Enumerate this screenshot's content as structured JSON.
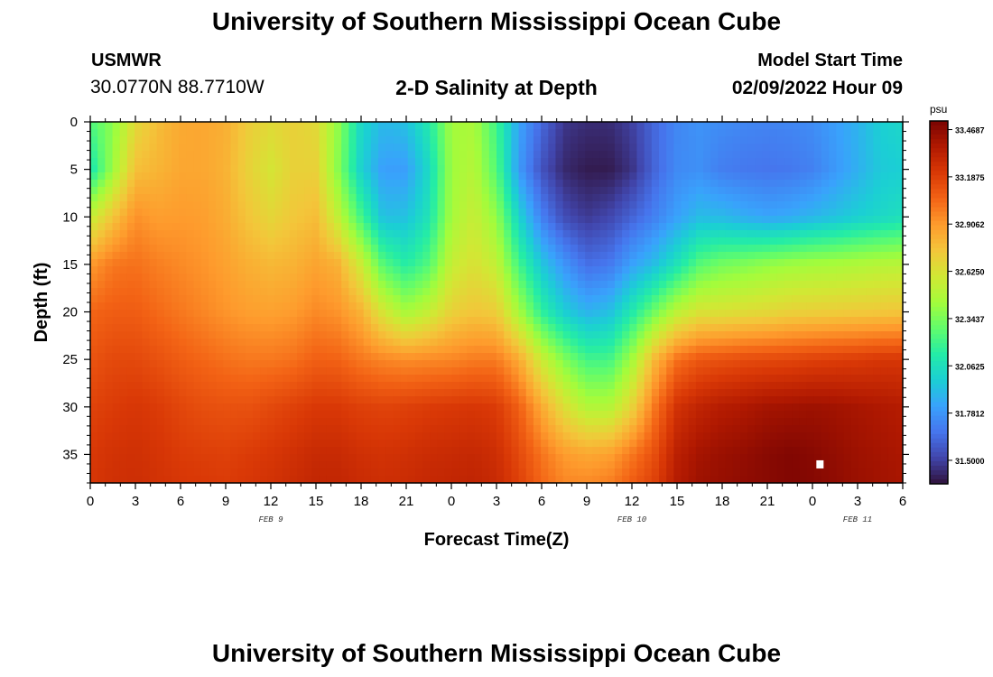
{
  "page": {
    "title_top": "University of Southern Mississippi Ocean Cube",
    "title_bottom": "University of Southern Mississippi Ocean Cube",
    "station_id": "USMWR",
    "station_coords": "30.0770N  88.7710W",
    "subtitle": "2-D Salinity at Depth",
    "model_start_label": "Model Start Time",
    "model_start_value": "02/09/2022 Hour 09"
  },
  "chart_data": {
    "type": "heatmap",
    "title": "2-D Salinity at Depth",
    "xlabel": "Forecast Time(Z)",
    "ylabel": "Depth (ft)",
    "x_hours_range": [
      0,
      54
    ],
    "x_ticks": [
      "0",
      "3",
      "6",
      "9",
      "12",
      "15",
      "18",
      "21",
      "0",
      "3",
      "6",
      "9",
      "12",
      "15",
      "18",
      "21",
      "0",
      "3",
      "6"
    ],
    "date_labels": [
      {
        "text": "FEB 9",
        "hour": 12
      },
      {
        "text": "FEB 10",
        "hour": 36
      },
      {
        "text": "FEB 11",
        "hour": 51
      }
    ],
    "ylim": [
      0,
      38
    ],
    "y_ticks": [
      "0",
      "5",
      "10",
      "15",
      "20",
      "25",
      "30",
      "35"
    ],
    "colorbar": {
      "unit": "psu",
      "labels": [
        "33.4687",
        "33.1875",
        "32.9062",
        "32.6250",
        "32.3437",
        "32.0625",
        "31.7812",
        "31.5000"
      ],
      "range": [
        31.36,
        33.52
      ],
      "colors": [
        "#30123b",
        "#4145ab",
        "#4675ed",
        "#39a2fc",
        "#1bcfd4",
        "#24eca6",
        "#61fc6c",
        "#a4fc3b",
        "#d1e834",
        "#f3c63a",
        "#fe9b2d",
        "#f36315",
        "#d93806",
        "#b11901",
        "#7a0402"
      ]
    },
    "salinity_grid": {
      "depth_ft": [
        0,
        5,
        10,
        15,
        20,
        25,
        30,
        35,
        38
      ],
      "hour": [
        0,
        1.5,
        3,
        4.5,
        6,
        7.5,
        9,
        10.5,
        12,
        13.5,
        15,
        16.5,
        18,
        19.5,
        21,
        22.5,
        24,
        25.5,
        27,
        28.5,
        30,
        31.5,
        33,
        34.5,
        36,
        37.5,
        39,
        40.5,
        42,
        43.5,
        45,
        46.5,
        48,
        49.5,
        51,
        52.5,
        54
      ],
      "values_psu": [
        [
          32.24,
          32.38,
          32.66,
          32.78,
          32.85,
          32.86,
          32.83,
          32.72,
          32.66,
          32.7,
          32.66,
          32.39,
          32.02,
          31.9,
          31.93,
          32.11,
          32.44,
          32.46,
          32.2,
          31.83,
          31.63,
          31.47,
          31.44,
          31.44,
          31.5,
          31.63,
          31.73,
          31.77,
          31.75,
          31.73,
          31.72,
          31.73,
          31.75,
          31.81,
          31.88,
          31.98,
          32.02
        ],
        [
          32.08,
          32.43,
          32.77,
          32.81,
          32.86,
          32.86,
          32.82,
          32.7,
          32.61,
          32.7,
          32.7,
          32.37,
          31.99,
          31.81,
          31.81,
          32.03,
          32.43,
          32.5,
          32.25,
          31.8,
          31.56,
          31.43,
          31.39,
          31.39,
          31.46,
          31.62,
          31.74,
          31.76,
          31.7,
          31.68,
          31.67,
          31.68,
          31.71,
          31.79,
          31.87,
          31.96,
          31.98
        ],
        [
          32.55,
          32.75,
          32.93,
          32.89,
          32.9,
          32.89,
          32.84,
          32.75,
          32.68,
          32.74,
          32.78,
          32.53,
          32.21,
          31.92,
          31.93,
          32.08,
          32.45,
          32.56,
          32.4,
          32.0,
          31.71,
          31.54,
          31.48,
          31.52,
          31.61,
          31.71,
          31.82,
          31.91,
          31.9,
          31.86,
          31.83,
          31.85,
          31.89,
          31.93,
          31.98,
          32.02,
          32.06
        ],
        [
          32.9,
          33.0,
          33.02,
          32.98,
          32.95,
          32.92,
          32.88,
          32.83,
          32.8,
          32.82,
          32.87,
          32.82,
          32.57,
          32.25,
          32.13,
          32.25,
          32.55,
          32.63,
          32.54,
          32.21,
          31.95,
          31.78,
          31.65,
          31.68,
          31.82,
          31.92,
          32.08,
          32.26,
          32.33,
          32.36,
          32.4,
          32.43,
          32.45,
          32.46,
          32.48,
          32.5,
          32.51
        ],
        [
          33.05,
          33.08,
          33.08,
          33.04,
          33.0,
          32.96,
          32.92,
          32.89,
          32.88,
          32.9,
          32.95,
          32.92,
          32.82,
          32.6,
          32.45,
          32.55,
          32.7,
          32.75,
          32.72,
          32.45,
          32.16,
          31.98,
          31.88,
          31.92,
          32.11,
          32.32,
          32.52,
          32.62,
          32.63,
          32.65,
          32.67,
          32.7,
          32.71,
          32.72,
          32.73,
          32.74,
          32.75
        ],
        [
          33.11,
          33.15,
          33.15,
          33.12,
          33.08,
          33.05,
          33.02,
          33.0,
          33.0,
          33.02,
          33.07,
          33.06,
          33.0,
          32.96,
          32.94,
          32.95,
          32.96,
          32.99,
          32.99,
          32.85,
          32.57,
          32.36,
          32.21,
          32.21,
          32.44,
          32.8,
          33.02,
          33.1,
          33.12,
          33.14,
          33.15,
          33.16,
          33.18,
          33.19,
          33.2,
          33.22,
          33.22
        ],
        [
          33.17,
          33.2,
          33.22,
          33.2,
          33.16,
          33.13,
          33.12,
          33.12,
          33.15,
          33.18,
          33.21,
          33.21,
          33.18,
          33.17,
          33.18,
          33.2,
          33.21,
          33.22,
          33.2,
          33.07,
          32.85,
          32.64,
          32.49,
          32.49,
          32.69,
          33.0,
          33.24,
          33.31,
          33.35,
          33.37,
          33.4,
          33.41,
          33.42,
          33.41,
          33.39,
          33.37,
          33.35
        ],
        [
          33.21,
          33.24,
          33.25,
          33.23,
          33.2,
          33.19,
          33.18,
          33.2,
          33.22,
          33.25,
          33.28,
          33.28,
          33.25,
          33.24,
          33.25,
          33.27,
          33.28,
          33.29,
          33.26,
          33.15,
          33.01,
          32.9,
          32.86,
          32.88,
          33.0,
          33.13,
          33.33,
          33.4,
          33.43,
          33.45,
          33.48,
          33.5,
          33.48,
          33.45,
          33.42,
          33.4,
          33.38
        ],
        [
          33.22,
          33.25,
          33.26,
          33.24,
          33.22,
          33.21,
          33.2,
          33.22,
          33.24,
          33.27,
          33.3,
          33.3,
          33.27,
          33.26,
          33.27,
          33.29,
          33.3,
          33.31,
          33.28,
          33.18,
          33.05,
          32.96,
          32.95,
          32.98,
          33.08,
          33.18,
          33.35,
          33.42,
          33.44,
          33.46,
          33.48,
          33.5,
          33.49,
          33.46,
          33.43,
          33.41,
          33.39
        ]
      ]
    },
    "marker": {
      "hour": 48.5,
      "depth_ft": 36
    }
  }
}
